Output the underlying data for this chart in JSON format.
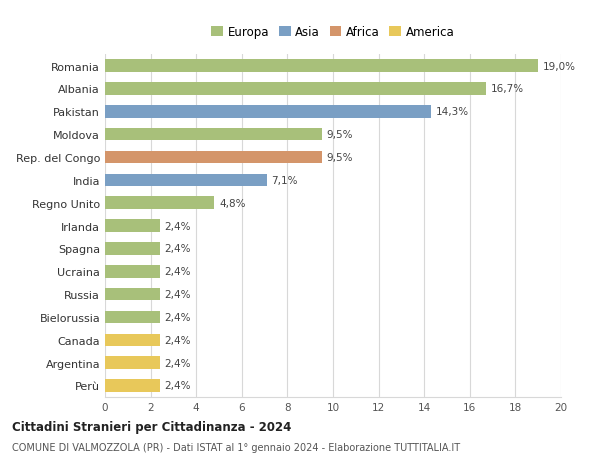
{
  "countries": [
    "Romania",
    "Albania",
    "Pakistan",
    "Moldova",
    "Rep. del Congo",
    "India",
    "Regno Unito",
    "Irlanda",
    "Spagna",
    "Ucraina",
    "Russia",
    "Bielorussia",
    "Canada",
    "Argentina",
    "Perù"
  ],
  "values": [
    19.0,
    16.7,
    14.3,
    9.5,
    9.5,
    7.1,
    4.8,
    2.4,
    2.4,
    2.4,
    2.4,
    2.4,
    2.4,
    2.4,
    2.4
  ],
  "labels": [
    "19,0%",
    "16,7%",
    "14,3%",
    "9,5%",
    "9,5%",
    "7,1%",
    "4,8%",
    "2,4%",
    "2,4%",
    "2,4%",
    "2,4%",
    "2,4%",
    "2,4%",
    "2,4%",
    "2,4%"
  ],
  "continents": [
    "Europa",
    "Europa",
    "Asia",
    "Europa",
    "Africa",
    "Asia",
    "Europa",
    "Europa",
    "Europa",
    "Europa",
    "Europa",
    "Europa",
    "America",
    "America",
    "America"
  ],
  "continent_colors": {
    "Europa": "#a8c07a",
    "Asia": "#7a9fc4",
    "Africa": "#d4956a",
    "America": "#e8c85a"
  },
  "legend_order": [
    "Europa",
    "Asia",
    "Africa",
    "America"
  ],
  "title1": "Cittadini Stranieri per Cittadinanza - 2024",
  "title2": "COMUNE DI VALMOZZOLA (PR) - Dati ISTAT al 1° gennaio 2024 - Elaborazione TUTTITALIA.IT",
  "xlim": [
    0,
    20
  ],
  "xticks": [
    0,
    2,
    4,
    6,
    8,
    10,
    12,
    14,
    16,
    18,
    20
  ],
  "background_color": "#ffffff",
  "grid_color": "#d8d8d8",
  "bar_height": 0.55
}
